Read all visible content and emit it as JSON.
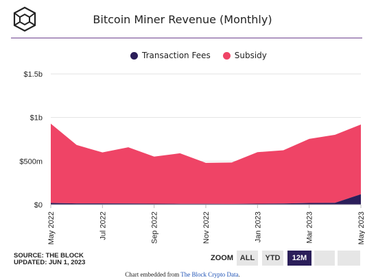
{
  "header": {
    "title": "Bitcoin Miner Revenue (Monthly)"
  },
  "legend": {
    "fees_label": "Transaction Fees",
    "subsidy_label": "Subsidy"
  },
  "colors": {
    "fees": "#2b1e5a",
    "subsidy": "#ef4466",
    "rule": "#6b3f8e",
    "axis_text": "#222222"
  },
  "footer": {
    "source_line1": "SOURCE: THE BLOCK",
    "source_line2": "UPDATED: JUN 1, 2023",
    "zoom_label": "ZOOM",
    "zoom_all": "ALL",
    "zoom_ytd": "YTD",
    "zoom_12m": "12M",
    "embed_prefix": "Chart embedded from ",
    "embed_link": "The Block Crypto Data",
    "embed_suffix": "."
  },
  "chart_data": {
    "type": "area",
    "stacked": true,
    "title": "Bitcoin Miner Revenue (Monthly)",
    "x": [
      "2022-05",
      "2022-06",
      "2022-07",
      "2022-08",
      "2022-09",
      "2022-10",
      "2022-11",
      "2022-12",
      "2023-01",
      "2023-02",
      "2023-03",
      "2023-04",
      "2023-05"
    ],
    "x_tick_labels": [
      "May 2022",
      "Jul 2022",
      "Sep 2022",
      "Nov 2022",
      "Jan 2023",
      "Mar 2023",
      "May 2023"
    ],
    "x_tick_positions": [
      "2022-05",
      "2022-07",
      "2022-09",
      "2022-11",
      "2023-01",
      "2023-03",
      "2023-05"
    ],
    "y_ticks": [
      0,
      500,
      1000,
      1500
    ],
    "y_tick_labels": [
      "$0",
      "$500m",
      "$1b",
      "$1.5b"
    ],
    "ylim": [
      0,
      1500
    ],
    "y_unit": "USD millions",
    "grid": "horizontal",
    "legend_position": "top",
    "series": [
      {
        "name": "Transaction Fees",
        "values": [
          20,
          15,
          15,
          14,
          12,
          10,
          10,
          9,
          12,
          14,
          20,
          22,
          120
        ]
      },
      {
        "name": "Subsidy",
        "values": [
          910,
          670,
          585,
          645,
          540,
          580,
          470,
          475,
          590,
          610,
          735,
          780,
          800
        ]
      }
    ]
  }
}
